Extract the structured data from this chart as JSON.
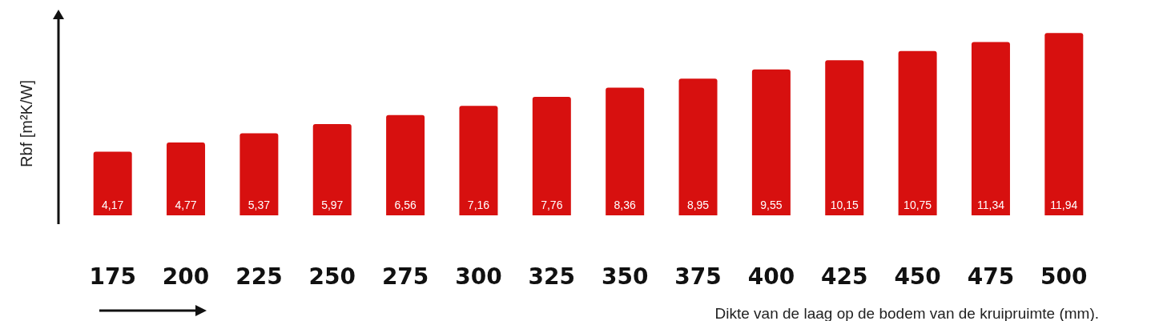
{
  "chart_data": {
    "type": "bar",
    "xlabel": "Dikte van de laag op de bodem van de kruipruimte (mm).",
    "ylabel": "Rbf [m²K/W]",
    "categories": [
      "175",
      "200",
      "225",
      "250",
      "275",
      "300",
      "325",
      "350",
      "375",
      "400",
      "425",
      "450",
      "475",
      "500"
    ],
    "values": [
      4.17,
      4.77,
      5.37,
      5.97,
      6.56,
      7.16,
      7.76,
      8.36,
      8.95,
      9.55,
      10.15,
      10.75,
      11.34,
      11.94
    ],
    "value_labels": [
      "4,17",
      "4,77",
      "5,37",
      "5,97",
      "6,56",
      "7,16",
      "7,76",
      "8,36",
      "8,95",
      "9,55",
      "10,15",
      "10,75",
      "11,34",
      "11,94"
    ],
    "color": "#d7100f",
    "tick_labels": "x"
  }
}
